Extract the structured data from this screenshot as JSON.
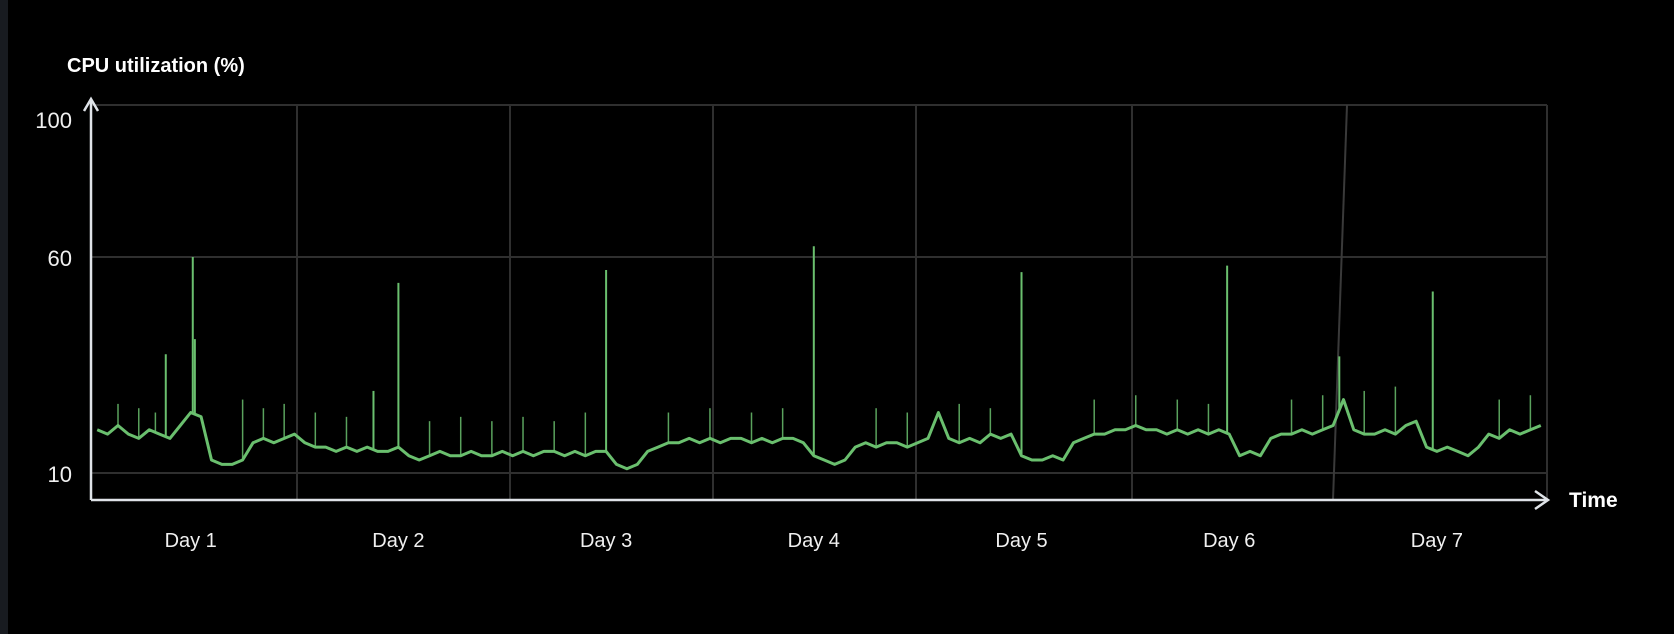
{
  "chart_data": {
    "type": "line",
    "title": "",
    "ylabel": "CPU utilization (%)",
    "xlabel": "Time",
    "y_ticks": [
      100,
      60,
      10
    ],
    "x_tick_labels": [
      "Day 1",
      "Day 2",
      "Day 3",
      "Day 4",
      "Day 5",
      "Day 6",
      "Day 7"
    ],
    "x_tick_values": [
      1,
      2,
      3,
      4,
      5,
      6,
      7
    ],
    "xlim": [
      0.52,
      7.53
    ],
    "ylim": [
      10,
      100
    ],
    "grid": true,
    "line_color": "#6abf6e",
    "series": [
      {
        "x_start": 0.55,
        "x_step": 0.05,
        "values": [
          20,
          19,
          21,
          19,
          18,
          20,
          19,
          18,
          21,
          24,
          23,
          13,
          12,
          12,
          13,
          17,
          18,
          17,
          18,
          19,
          17,
          16,
          16,
          15,
          16,
          15,
          16,
          15,
          15,
          16,
          14,
          13,
          14,
          15,
          14,
          14,
          15,
          14,
          14,
          15,
          14,
          15,
          14,
          15,
          15,
          14,
          15,
          14,
          15,
          15,
          12,
          11,
          12,
          15,
          16,
          17,
          17,
          18,
          17,
          18,
          17,
          18,
          18,
          17,
          18,
          17,
          18,
          18,
          17,
          14,
          13,
          12,
          13,
          16,
          17,
          16,
          17,
          17,
          16,
          17,
          18,
          24,
          18,
          17,
          18,
          17,
          19,
          18,
          19,
          14,
          13,
          13,
          14,
          13,
          17,
          18,
          19,
          19,
          20,
          20,
          21,
          20,
          20,
          19,
          20,
          19,
          20,
          19,
          20,
          19,
          14,
          15,
          14,
          18,
          19,
          19,
          20,
          19,
          20,
          21,
          27,
          20,
          19,
          19,
          20,
          19,
          21,
          22,
          16,
          15,
          16,
          15,
          14,
          16,
          19,
          18,
          20,
          19,
          20,
          21
        ]
      }
    ],
    "major_spikes": [
      [
        0.88,
        37.5
      ],
      [
        1.01,
        60
      ],
      [
        1.02,
        41
      ],
      [
        1.88,
        29
      ],
      [
        2.0,
        54
      ],
      [
        3.0,
        57
      ],
      [
        4.0,
        63
      ],
      [
        5.0,
        56.5
      ],
      [
        5.99,
        58
      ],
      [
        6.53,
        37
      ],
      [
        6.98,
        52
      ]
    ],
    "minor_spikes": [
      [
        0.65,
        26
      ],
      [
        0.75,
        25
      ],
      [
        0.83,
        24
      ],
      [
        1.25,
        27
      ],
      [
        1.35,
        25
      ],
      [
        1.45,
        26
      ],
      [
        1.6,
        24
      ],
      [
        1.75,
        23
      ],
      [
        2.15,
        22
      ],
      [
        2.3,
        23
      ],
      [
        2.45,
        22
      ],
      [
        2.6,
        23
      ],
      [
        2.75,
        22
      ],
      [
        2.9,
        24
      ],
      [
        3.3,
        24
      ],
      [
        3.5,
        25
      ],
      [
        3.7,
        24
      ],
      [
        3.85,
        25
      ],
      [
        4.3,
        25
      ],
      [
        4.45,
        24
      ],
      [
        4.7,
        26
      ],
      [
        4.85,
        25
      ],
      [
        5.35,
        27
      ],
      [
        5.55,
        28
      ],
      [
        5.75,
        27
      ],
      [
        5.9,
        26
      ],
      [
        6.3,
        27
      ],
      [
        6.45,
        28
      ],
      [
        6.65,
        29
      ],
      [
        6.8,
        30
      ],
      [
        7.3,
        27
      ],
      [
        7.45,
        28
      ]
    ]
  }
}
